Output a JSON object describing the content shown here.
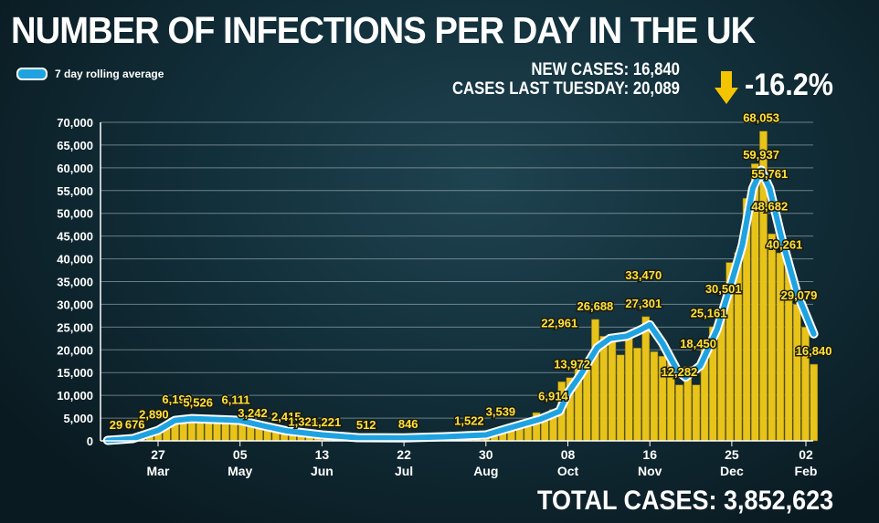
{
  "header": {
    "title": "NUMBER OF INFECTIONS PER DAY IN THE UK",
    "legend_label": "7 day rolling average"
  },
  "stats": {
    "new_cases": "NEW CASES: 16,840",
    "last_tuesday": "CASES LAST TUESDAY: 20,089",
    "change": "-16.2%",
    "arrow_icon": "arrow-down",
    "arrow_color": "#f5c400"
  },
  "footer": {
    "total": "TOTAL CASES: 3,852,623"
  },
  "colors": {
    "bars": "#e8c31a",
    "rolling_line": "#1fa3e0",
    "rolling_outline": "#ffffff",
    "labels": "#ffe23a"
  },
  "chart_data": {
    "type": "bar",
    "title": "NUMBER OF INFECTIONS PER DAY IN THE UK",
    "ylim": [
      0,
      70000
    ],
    "yticks": [
      0,
      5000,
      10000,
      15000,
      20000,
      25000,
      30000,
      35000,
      40000,
      45000,
      50000,
      55000,
      60000,
      65000,
      70000
    ],
    "ytick_labels": [
      "0",
      "5,000",
      "10,000",
      "15,000",
      "20,000",
      "25,000",
      "30,000",
      "35,000",
      "40,000",
      "45,000",
      "50,000",
      "55,000",
      "60,000",
      "65,000",
      "70,000"
    ],
    "xticks": [
      {
        "date": "2020-03-27",
        "day": "27",
        "month": "Mar"
      },
      {
        "date": "2020-05-05",
        "day": "05",
        "month": "May"
      },
      {
        "date": "2020-06-13",
        "day": "13",
        "month": "Jun"
      },
      {
        "date": "2020-07-22",
        "day": "22",
        "month": "Jul"
      },
      {
        "date": "2020-08-30",
        "day": "30",
        "month": "Aug"
      },
      {
        "date": "2020-10-08",
        "day": "08",
        "month": "Oct"
      },
      {
        "date": "2020-11-16",
        "day": "16",
        "month": "Nov"
      },
      {
        "date": "2020-12-25",
        "day": "25",
        "month": "Dec"
      },
      {
        "date": "2021-02-02",
        "day": "02",
        "month": "Feb"
      }
    ],
    "grid": true,
    "legend": "top-left",
    "daily_cases": [
      [
        "2020-03-03",
        50
      ],
      [
        "2020-03-07",
        200
      ],
      [
        "2020-03-11",
        400
      ],
      [
        "2020-03-15",
        676
      ],
      [
        "2020-03-19",
        700
      ],
      [
        "2020-03-23",
        1000
      ],
      [
        "2020-03-27",
        2890
      ],
      [
        "2020-03-31",
        3000
      ],
      [
        "2020-04-04",
        4500
      ],
      [
        "2020-04-08",
        5500
      ],
      [
        "2020-04-12",
        5300
      ],
      [
        "2020-04-16",
        5500
      ],
      [
        "2020-04-20",
        5000
      ],
      [
        "2020-04-24",
        5400
      ],
      [
        "2020-04-28",
        4500
      ],
      [
        "2020-05-02",
        4800
      ],
      [
        "2020-05-06",
        4400
      ],
      [
        "2020-05-10",
        3700
      ],
      [
        "2020-05-14",
        3400
      ],
      [
        "2020-05-18",
        2700
      ],
      [
        "2020-05-22",
        2600
      ],
      [
        "2020-05-26",
        2000
      ],
      [
        "2020-05-30",
        1600
      ],
      [
        "2020-06-03",
        1800
      ],
      [
        "2020-06-07",
        1300
      ],
      [
        "2020-06-11",
        1200
      ],
      [
        "2020-06-15",
        1000
      ],
      [
        "2020-06-19",
        1200
      ],
      [
        "2020-06-23",
        900
      ],
      [
        "2020-06-27",
        900
      ],
      [
        "2020-07-01",
        800
      ],
      [
        "2020-07-05",
        600
      ],
      [
        "2020-07-09",
        600
      ],
      [
        "2020-07-13",
        650
      ],
      [
        "2020-07-17",
        700
      ],
      [
        "2020-07-21",
        600
      ],
      [
        "2020-07-25",
        750
      ],
      [
        "2020-07-29",
        800
      ],
      [
        "2020-08-02",
        750
      ],
      [
        "2020-08-06",
        950
      ],
      [
        "2020-08-10",
        1000
      ],
      [
        "2020-08-14",
        1400
      ],
      [
        "2020-08-18",
        800
      ],
      [
        "2020-08-22",
        1300
      ],
      [
        "2020-08-26",
        1200
      ],
      [
        "2020-08-30",
        1700
      ],
      [
        "2020-09-03",
        1900
      ],
      [
        "2020-09-07",
        2900
      ],
      [
        "2020-09-11",
        3500
      ],
      [
        "2020-09-15",
        3100
      ],
      [
        "2020-09-19",
        4400
      ],
      [
        "2020-09-23",
        6200
      ],
      [
        "2020-09-27",
        5800
      ],
      [
        "2020-10-01",
        6900
      ],
      [
        "2020-10-05",
        13000
      ],
      [
        "2020-10-09",
        13900
      ],
      [
        "2020-10-13",
        17000
      ],
      [
        "2020-10-17",
        16900
      ],
      [
        "2020-10-21",
        26700
      ],
      [
        "2020-10-25",
        23000
      ],
      [
        "2020-10-29",
        23000
      ],
      [
        "2020-11-02",
        18900
      ],
      [
        "2020-11-06",
        24000
      ],
      [
        "2020-11-10",
        20400
      ],
      [
        "2020-11-14",
        27300
      ],
      [
        "2020-11-18",
        19600
      ],
      [
        "2020-11-22",
        18600
      ],
      [
        "2020-11-26",
        17500
      ],
      [
        "2020-11-30",
        12300
      ],
      [
        "2020-12-04",
        16300
      ],
      [
        "2020-12-08",
        12300
      ],
      [
        "2020-12-12",
        21500
      ],
      [
        "2020-12-16",
        25100
      ],
      [
        "2020-12-20",
        27000
      ],
      [
        "2020-12-24",
        39200
      ],
      [
        "2020-12-28",
        41400
      ],
      [
        "2021-01-01",
        53300
      ],
      [
        "2021-01-05",
        60900
      ],
      [
        "2021-01-09",
        68053
      ],
      [
        "2021-01-13",
        45500
      ],
      [
        "2021-01-17",
        41300
      ],
      [
        "2021-01-21",
        38900
      ],
      [
        "2021-01-25",
        30000
      ],
      [
        "2021-01-29",
        25000
      ],
      [
        "2021-02-02",
        16840
      ]
    ],
    "rolling_average": [
      [
        "2020-03-03",
        100
      ],
      [
        "2020-03-15",
        500
      ],
      [
        "2020-03-27",
        2300
      ],
      [
        "2020-04-04",
        4500
      ],
      [
        "2020-04-12",
        4900
      ],
      [
        "2020-04-24",
        4700
      ],
      [
        "2020-05-05",
        4500
      ],
      [
        "2020-05-15",
        3400
      ],
      [
        "2020-05-27",
        2200
      ],
      [
        "2020-06-13",
        1300
      ],
      [
        "2020-06-30",
        700
      ],
      [
        "2020-07-22",
        650
      ],
      [
        "2020-08-10",
        900
      ],
      [
        "2020-08-30",
        1300
      ],
      [
        "2020-09-10",
        2800
      ],
      [
        "2020-09-25",
        4800
      ],
      [
        "2020-10-04",
        6500
      ],
      [
        "2020-10-08",
        10500
      ],
      [
        "2020-10-14",
        14500
      ],
      [
        "2020-10-22",
        20500
      ],
      [
        "2020-10-28",
        22500
      ],
      [
        "2020-11-05",
        23000
      ],
      [
        "2020-11-12",
        24500
      ],
      [
        "2020-11-16",
        25500
      ],
      [
        "2020-11-22",
        21500
      ],
      [
        "2020-11-29",
        15500
      ],
      [
        "2020-12-03",
        14000
      ],
      [
        "2020-12-10",
        16500
      ],
      [
        "2020-12-18",
        24500
      ],
      [
        "2020-12-24",
        33500
      ],
      [
        "2020-12-30",
        43000
      ],
      [
        "2021-01-04",
        55500
      ],
      [
        "2021-01-08",
        59500
      ],
      [
        "2021-01-12",
        55500
      ],
      [
        "2021-01-18",
        44000
      ],
      [
        "2021-01-25",
        32500
      ],
      [
        "2021-02-02",
        23500
      ]
    ],
    "annotations": [
      {
        "date": "2020-03-07",
        "value": 29,
        "text": "29"
      },
      {
        "date": "2020-03-16",
        "value": 676,
        "text": "676"
      },
      {
        "date": "2020-03-25",
        "value": 2890,
        "text": "2,890"
      },
      {
        "date": "2020-04-05",
        "value": 6199,
        "text": "6,199"
      },
      {
        "date": "2020-04-15",
        "value": 5526,
        "text": "5,526"
      },
      {
        "date": "2020-05-03",
        "value": 6111,
        "text": "6,111"
      },
      {
        "date": "2020-05-11",
        "value": 3242,
        "text": "3,242"
      },
      {
        "date": "2020-05-27",
        "value": 2415,
        "text": "2,415"
      },
      {
        "date": "2020-06-04",
        "value": 1326,
        "text": "1,326"
      },
      {
        "date": "2020-06-15",
        "value": 1221,
        "text": "1,221"
      },
      {
        "date": "2020-07-04",
        "value": 512,
        "text": "512"
      },
      {
        "date": "2020-07-24",
        "value": 846,
        "text": "846"
      },
      {
        "date": "2020-08-22",
        "value": 1522,
        "text": "1,522"
      },
      {
        "date": "2020-09-06",
        "value": 3539,
        "text": "3,539"
      },
      {
        "date": "2020-10-01",
        "value": 6914,
        "text": "6,914"
      },
      {
        "date": "2020-10-04",
        "value": 22961,
        "text": "22,961"
      },
      {
        "date": "2020-10-10",
        "value": 13972,
        "text": "13,972"
      },
      {
        "date": "2020-10-21",
        "value": 26688,
        "text": "26,688"
      },
      {
        "date": "2020-11-13",
        "value": 33470,
        "text": "33,470"
      },
      {
        "date": "2020-11-13",
        "value": 27301,
        "text": "27,301"
      },
      {
        "date": "2020-11-30",
        "value": 12282,
        "text": "12,282"
      },
      {
        "date": "2020-12-09",
        "value": 18450,
        "text": "18,450"
      },
      {
        "date": "2020-12-14",
        "value": 25161,
        "text": "25,161"
      },
      {
        "date": "2020-12-21",
        "value": 30501,
        "text": "30,501"
      },
      {
        "date": "2021-01-08",
        "value": 68053,
        "text": "68,053"
      },
      {
        "date": "2021-01-08",
        "value": 59937,
        "text": "59,937"
      },
      {
        "date": "2021-01-12",
        "value": 55761,
        "text": "55,761"
      },
      {
        "date": "2021-01-12",
        "value": 48682,
        "text": "48,682"
      },
      {
        "date": "2021-01-19",
        "value": 40261,
        "text": "40,261"
      },
      {
        "date": "2021-01-26",
        "value": 29079,
        "text": "29,079"
      },
      {
        "date": "2021-02-02",
        "value": 16840,
        "text": "16,840"
      }
    ]
  }
}
